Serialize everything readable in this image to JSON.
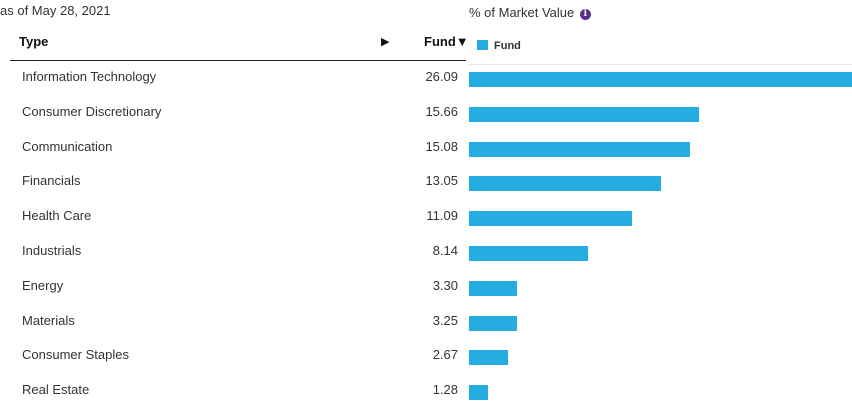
{
  "as_of": "as of May 28, 2021",
  "chart_title": "% of Market Value",
  "info_icon": "info-icon",
  "table_header": {
    "type": "Type",
    "fund": "Fund▼",
    "expand_arrow": "▶"
  },
  "legend": {
    "label": "Fund"
  },
  "colors": {
    "bar": "#25ade2",
    "info_icon": "#5b2d8e"
  },
  "rows": [
    {
      "label": "Information Technology",
      "value": "26.09"
    },
    {
      "label": "Consumer Discretionary",
      "value": "15.66"
    },
    {
      "label": "Communication",
      "value": "15.08"
    },
    {
      "label": "Financials",
      "value": "13.05"
    },
    {
      "label": "Health Care",
      "value": "11.09"
    },
    {
      "label": "Industrials",
      "value": "8.14"
    },
    {
      "label": "Energy",
      "value": "3.30"
    },
    {
      "label": "Materials",
      "value": "3.25"
    },
    {
      "label": "Consumer Staples",
      "value": "2.67"
    },
    {
      "label": "Real Estate",
      "value": "1.28"
    }
  ],
  "chart_data": {
    "type": "bar",
    "orientation": "horizontal",
    "title": "% of Market Value",
    "categories": [
      "Information Technology",
      "Consumer Discretionary",
      "Communication",
      "Financials",
      "Health Care",
      "Industrials",
      "Energy",
      "Materials",
      "Consumer Staples",
      "Real Estate"
    ],
    "series": [
      {
        "name": "Fund",
        "values": [
          26.09,
          15.66,
          15.08,
          13.05,
          11.09,
          8.14,
          3.3,
          3.25,
          2.67,
          1.28
        ]
      }
    ],
    "xlim": [
      0,
      26.09
    ],
    "legend": "top-left",
    "grid": false
  }
}
